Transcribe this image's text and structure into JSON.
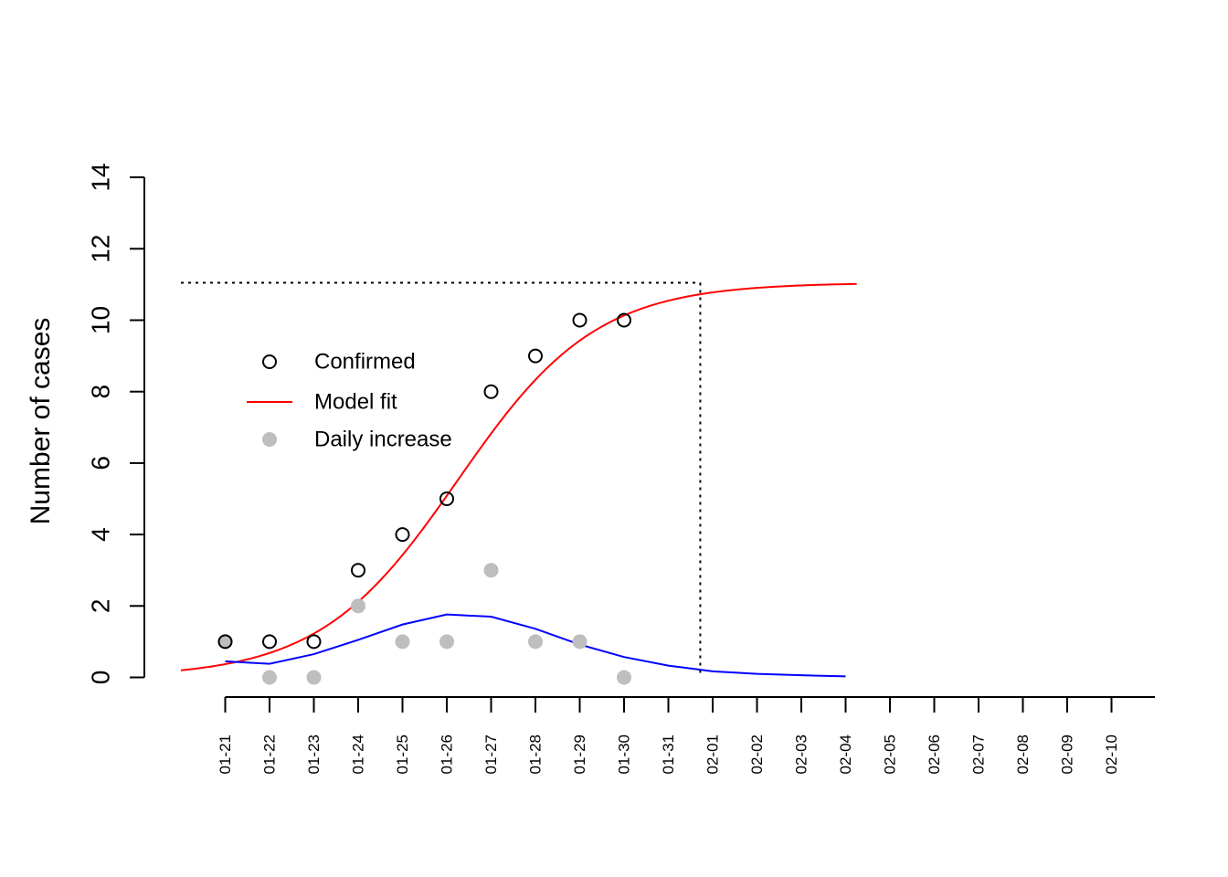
{
  "chart_data": {
    "type": "line",
    "title": "",
    "xlabel": "",
    "ylabel": "Number of cases",
    "ylim": [
      0,
      14
    ],
    "yticks": [
      0,
      2,
      4,
      6,
      8,
      10,
      12,
      14
    ],
    "categories": [
      "01-21",
      "01-22",
      "01-23",
      "01-24",
      "01-25",
      "01-26",
      "01-27",
      "01-28",
      "01-29",
      "01-30",
      "01-31",
      "02-01",
      "02-02",
      "02-03",
      "02-04",
      "02-05",
      "02-06",
      "02-07",
      "02-08",
      "02-09",
      "02-10"
    ],
    "series": [
      {
        "name": "Confirmed",
        "kind": "points-open",
        "color": "#000000",
        "x": [
          "01-21",
          "01-22",
          "01-23",
          "01-24",
          "01-25",
          "01-26",
          "01-27",
          "01-28",
          "01-29",
          "01-30"
        ],
        "values": [
          1,
          1,
          1,
          3,
          4,
          5,
          8,
          9,
          10,
          10
        ]
      },
      {
        "name": "Model fit",
        "kind": "line",
        "color": "#ff0000",
        "x_start": "01-20",
        "x_end": "02-04",
        "logistic": {
          "K": 11.05,
          "r": 0.64,
          "t0": 5.25
        }
      },
      {
        "name": "Daily increase",
        "kind": "points-filled",
        "color": "#bebebe",
        "x": [
          "01-21",
          "01-22",
          "01-23",
          "01-24",
          "01-25",
          "01-26",
          "01-27",
          "01-28",
          "01-29",
          "01-30"
        ],
        "values": [
          1,
          0,
          0,
          2,
          1,
          1,
          3,
          1,
          1,
          0
        ]
      },
      {
        "kind": "line",
        "color": "#0000ff",
        "x": [
          "01-21",
          "01-22",
          "01-23",
          "01-24",
          "01-25",
          "01-26",
          "01-27",
          "01-28",
          "01-29",
          "01-30",
          "01-31",
          "02-01",
          "02-02",
          "02-03",
          "02-04"
        ],
        "values": [
          0.45,
          0.38,
          0.65,
          1.05,
          1.48,
          1.76,
          1.7,
          1.36,
          0.92,
          0.57,
          0.33,
          0.17,
          0.1,
          0.06,
          0.03
        ]
      }
    ],
    "reference_lines": {
      "plateau": 11.05,
      "plateau_x_start": "01-20",
      "vertical_x": "01-31"
    },
    "legend": {
      "placement": "upper-left",
      "entries": [
        {
          "label": "Confirmed",
          "symbol": "open-circle",
          "color": "#000000"
        },
        {
          "label": "Model fit",
          "symbol": "line",
          "color": "#ff0000"
        },
        {
          "label": "Daily increase",
          "symbol": "filled-circle",
          "color": "#bebebe"
        }
      ]
    },
    "grid": false
  }
}
